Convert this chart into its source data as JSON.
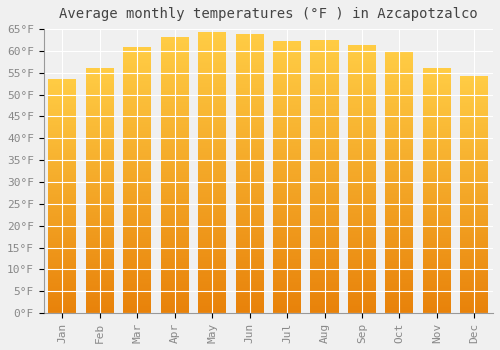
{
  "title": "Average monthly temperatures (°F ) in Azcapotzalco",
  "categories": [
    "Jan",
    "Feb",
    "Mar",
    "Apr",
    "May",
    "Jun",
    "Jul",
    "Aug",
    "Sep",
    "Oct",
    "Nov",
    "Dec"
  ],
  "values": [
    53.5,
    56.0,
    60.8,
    63.1,
    64.2,
    63.9,
    62.2,
    62.4,
    61.3,
    59.7,
    56.1,
    54.1
  ],
  "bar_color_bottom": "#E8820A",
  "bar_color_top": "#FFCC44",
  "background_color": "#f0f0f0",
  "plot_bg_color": "#f0f0f0",
  "grid_color": "#ffffff",
  "tick_label_color": "#888888",
  "title_color": "#444444",
  "ylim": [
    0,
    65
  ],
  "ytick_step": 5,
  "title_fontsize": 10,
  "tick_fontsize": 8
}
